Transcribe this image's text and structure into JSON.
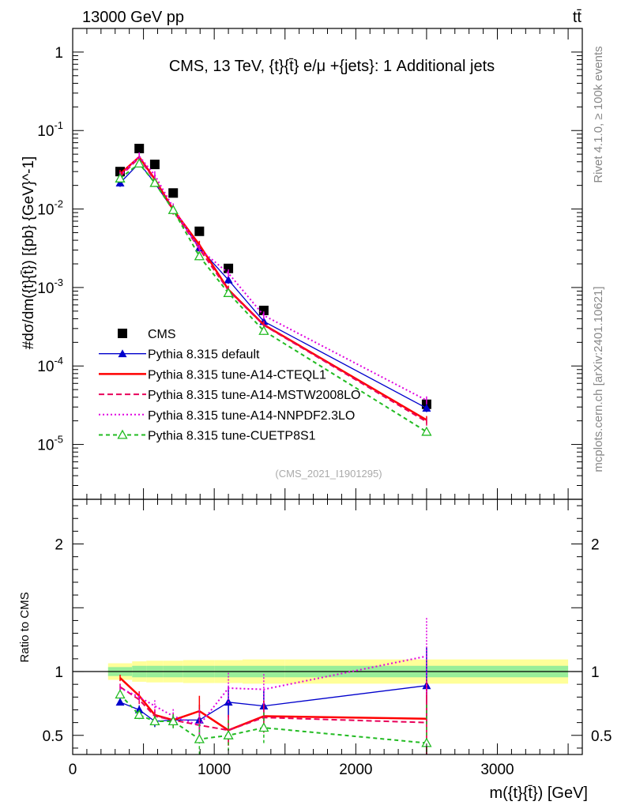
{
  "header": {
    "energy_label": "13000 GeV pp",
    "process_label": "tt̄"
  },
  "side_text": {
    "rivet": "Rivet 4.1.0, ≥ 100k events",
    "mcplots": "mcplots.cern.ch [arXiv:2401.10621]"
  },
  "colors": {
    "cms": "#000000",
    "default": "#0000cc",
    "a14_cteql1": "#ff0000",
    "a14_mstw": "#e8005a",
    "a14_nnpdf": "#e000e0",
    "cuetp8s1": "#22bb22",
    "band_inner": "#99ee99",
    "band_outer": "#ffff99"
  },
  "chart_data": [
    {
      "type": "line",
      "panel": "main",
      "title": "CMS, 13 TeV, {t}{t̄} e/μ +{jets}: 1 Additional jets",
      "subtitle": "(CMS_2021_I1901295)",
      "ylabel": "#dσ/dm({t}{t̄}) [{pb} {GeV}^-1]",
      "yscale": "log",
      "ylim": [
        2e-06,
        2
      ],
      "xlim": [
        0,
        3600
      ],
      "ytick_labels": [
        "1",
        "10^-1",
        "10^-2",
        "10^-3",
        "10^-4",
        "10^-5"
      ],
      "legend_position": "middle-left",
      "x": [
        335,
        470,
        580,
        710,
        895,
        1100,
        1350,
        2500
      ],
      "series": [
        {
          "name": "CMS",
          "key": "cms",
          "style": "square",
          "values": [
            0.03,
            0.059,
            0.037,
            0.016,
            0.0052,
            0.00175,
            0.00051,
            3.25e-05
          ]
        },
        {
          "name": "Pythia 8.315 default",
          "key": "default",
          "style": "triangle",
          "values": [
            0.0215,
            0.0385,
            0.0215,
            0.0097,
            0.0032,
            0.00125,
            0.00037,
            2.9e-05
          ]
        },
        {
          "name": "Pythia 8.315 tune-A14-CTEQL1",
          "key": "a14_cteql1",
          "style": "solid",
          "values": [
            0.028,
            0.046,
            0.024,
            0.0098,
            0.0035,
            0.00094,
            0.000335,
            2.05e-05
          ]
        },
        {
          "name": "Pythia 8.315 tune-A14-MSTW2008LO",
          "key": "a14_mstw",
          "style": "dashed",
          "values": [
            0.026,
            0.045,
            0.023,
            0.0095,
            0.0031,
            0.00092,
            0.00033,
            1.95e-05
          ]
        },
        {
          "name": "Pythia 8.315 tune-A14-NNPDF2.3LO",
          "key": "a14_nnpdf",
          "style": "dotted",
          "values": [
            0.0265,
            0.047,
            0.027,
            0.0105,
            0.0031,
            0.00152,
            0.00044,
            3.65e-05
          ]
        },
        {
          "name": "Pythia 8.315 tune-CUETP8S1",
          "key": "cuetp8s1",
          "style": "dashed-open-triangle",
          "values": [
            0.0245,
            0.038,
            0.0215,
            0.0097,
            0.0025,
            0.00085,
            0.00028,
            1.45e-05
          ]
        }
      ]
    },
    {
      "type": "line",
      "panel": "ratio",
      "ylabel": "Ratio to CMS",
      "xlabel": "m({t}{t̄}) [GeV]",
      "ylim": [
        0.35,
        2.35
      ],
      "xlim": [
        0,
        3600
      ],
      "xticks": [
        0,
        1000,
        2000,
        3000
      ],
      "xtick_labels": [
        "0",
        "1000",
        "2000",
        "3000"
      ],
      "yticks": [
        0.5,
        1,
        2
      ],
      "ytick_labels": [
        "0.5",
        "1",
        "2"
      ],
      "band_edges": [
        250,
        420,
        520,
        640,
        780,
        1000,
        1200,
        1500,
        3500
      ],
      "band_inner": [
        [
          0.965,
          1.035
        ],
        [
          0.955,
          1.045
        ],
        [
          0.955,
          1.045
        ],
        [
          0.955,
          1.045
        ],
        [
          0.955,
          1.045
        ],
        [
          0.955,
          1.045
        ],
        [
          0.955,
          1.045
        ],
        [
          0.955,
          1.045
        ]
      ],
      "band_outer": [
        [
          0.935,
          1.065
        ],
        [
          0.92,
          1.08
        ],
        [
          0.915,
          1.085
        ],
        [
          0.915,
          1.085
        ],
        [
          0.91,
          1.09
        ],
        [
          0.91,
          1.09
        ],
        [
          0.905,
          1.095
        ],
        [
          0.905,
          1.095
        ]
      ],
      "x": [
        335,
        470,
        580,
        710,
        895,
        1100,
        1350,
        2500
      ],
      "series": [
        {
          "name": "Pythia 8.315 default",
          "key": "default",
          "style": "triangle",
          "values": [
            0.76,
            0.7,
            0.61,
            0.62,
            0.62,
            0.76,
            0.73,
            0.89
          ]
        },
        {
          "name": "Pythia 8.315 tune-A14-CTEQL1",
          "key": "a14_cteql1",
          "style": "solid",
          "values": [
            0.95,
            0.81,
            0.66,
            0.62,
            0.69,
            0.54,
            0.65,
            0.63
          ]
        },
        {
          "name": "Pythia 8.315 tune-A14-MSTW2008LO",
          "key": "a14_mstw",
          "style": "dashed",
          "values": [
            0.88,
            0.78,
            0.65,
            0.62,
            0.58,
            0.54,
            0.64,
            0.6
          ]
        },
        {
          "name": "Pythia 8.315 tune-A14-NNPDF2.3LO",
          "key": "a14_nnpdf",
          "style": "dotted",
          "values": [
            0.87,
            0.8,
            0.73,
            0.65,
            0.58,
            0.87,
            0.86,
            1.12
          ]
        },
        {
          "name": "Pythia 8.315 tune-CUETP8S1",
          "key": "cuetp8s1",
          "style": "dashed-open-triangle",
          "values": [
            0.82,
            0.66,
            0.61,
            0.61,
            0.47,
            0.5,
            0.56,
            0.44
          ]
        }
      ]
    }
  ]
}
